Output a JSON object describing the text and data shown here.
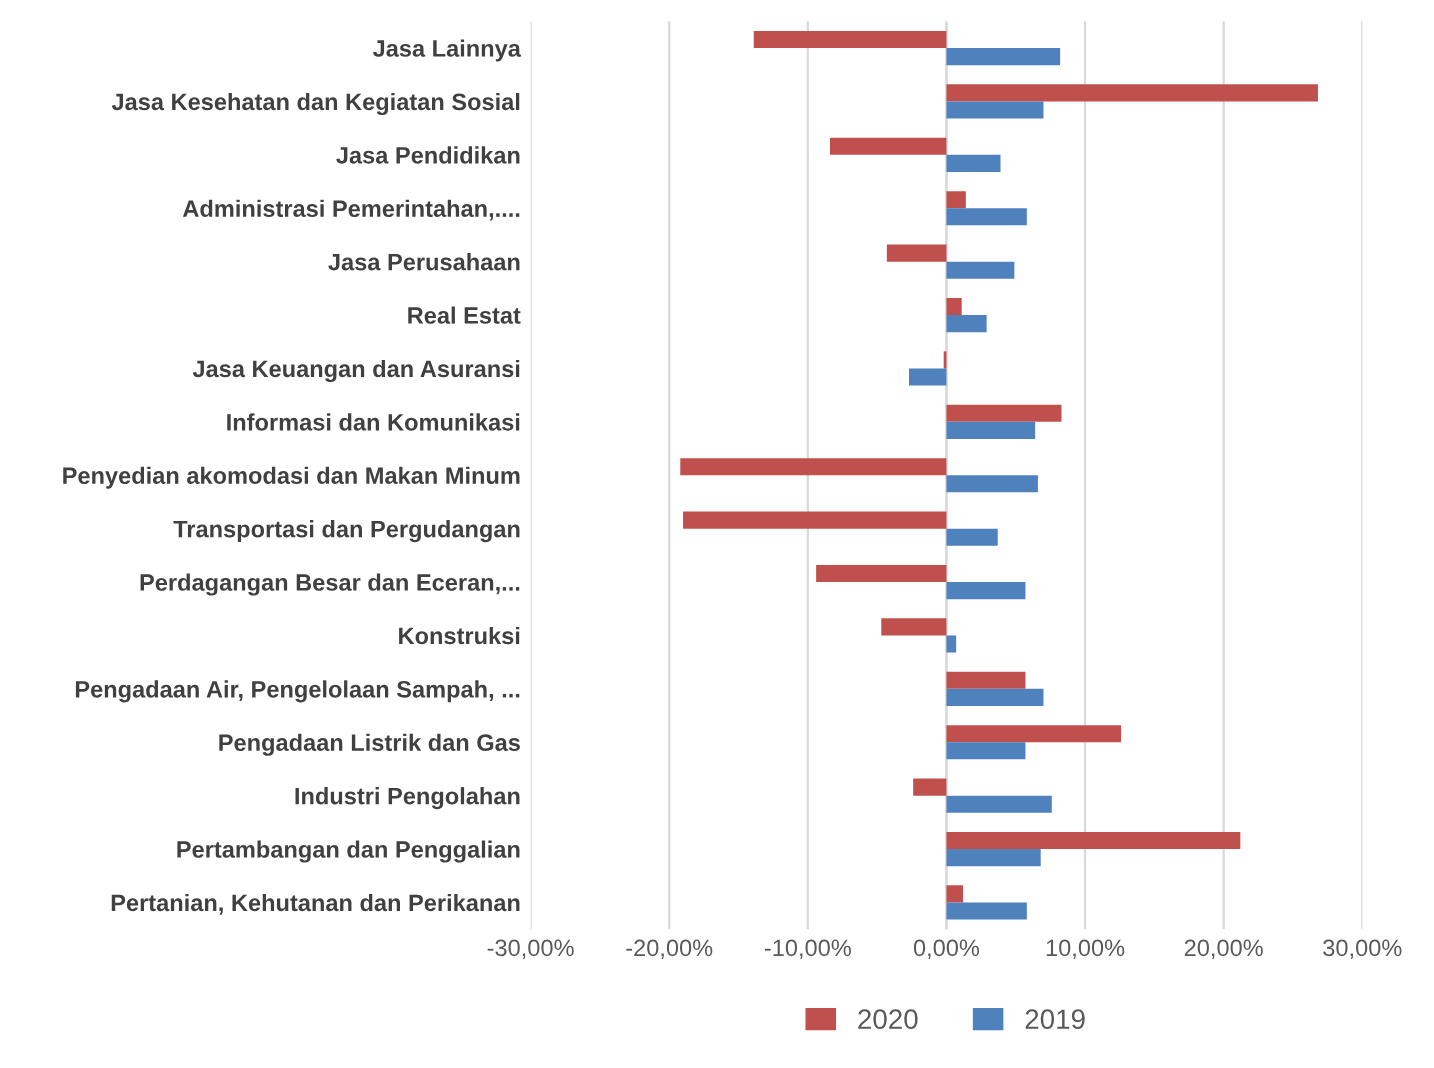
{
  "chart_data": {
    "type": "bar",
    "orientation": "horizontal",
    "categories": [
      "Jasa Lainnya",
      "Jasa Kesehatan dan Kegiatan Sosial",
      "Jasa Pendidikan",
      "Administrasi Pemerintahan,....",
      "Jasa Perusahaan",
      "Real Estat",
      "Jasa Keuangan dan Asuransi",
      "Informasi dan Komunikasi",
      "Penyedian akomodasi dan Makan Minum",
      "Transportasi dan Pergudangan",
      "Perdagangan Besar dan Eceran,...",
      "Konstruksi",
      "Pengadaan Air, Pengelolaan Sampah, ...",
      "Pengadaan Listrik dan Gas",
      "Industri Pengolahan",
      "Pertambangan dan Penggalian",
      "Pertanian, Kehutanan dan Perikanan"
    ],
    "series": [
      {
        "name": "2020",
        "color": "#c0504d",
        "values": [
          -13.9,
          26.8,
          -8.4,
          1.4,
          -4.3,
          1.1,
          -0.2,
          8.3,
          -19.2,
          -19.0,
          -9.4,
          -4.7,
          5.7,
          12.6,
          -2.4,
          21.2,
          1.2
        ]
      },
      {
        "name": "2019",
        "color": "#4f81bd",
        "values": [
          8.2,
          7.0,
          3.9,
          5.8,
          4.9,
          2.9,
          -2.7,
          6.4,
          6.6,
          3.7,
          5.7,
          0.7,
          7.0,
          5.7,
          7.6,
          6.8,
          5.8
        ]
      }
    ],
    "xlim": [
      -30,
      30
    ],
    "xticks": [
      {
        "value": -30,
        "label": "-30,00%"
      },
      {
        "value": -20,
        "label": "-20,00%"
      },
      {
        "value": -10,
        "label": "-10,00%"
      },
      {
        "value": 0,
        "label": "0,00%"
      },
      {
        "value": 10,
        "label": "10,00%"
      },
      {
        "value": 20,
        "label": "20,00%"
      },
      {
        "value": 30,
        "label": "30,00%"
      }
    ],
    "grid": "x",
    "legend": "bottom"
  }
}
